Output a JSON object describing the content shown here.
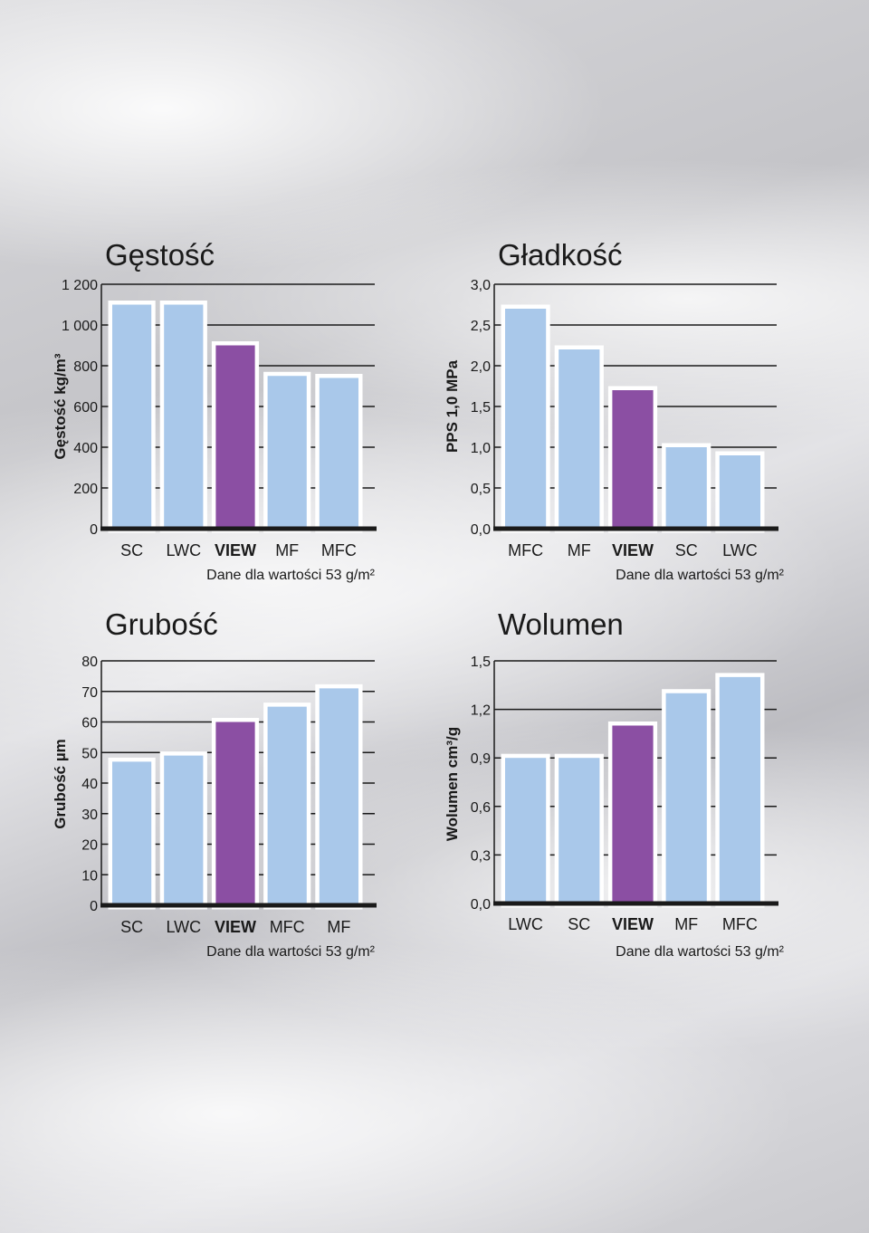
{
  "colors": {
    "bar": "#a9c8ea",
    "highlight": "#8b4fa3",
    "outline": "#ffffff",
    "axis": "#1a1a1a",
    "text": "#1a1a1a"
  },
  "chart_data": [
    {
      "type": "bar",
      "title": "Gęstość",
      "ylabel": "Gęstość kg/m³",
      "note": "Dane dla wartości 53 g/m²",
      "categories": [
        "SC",
        "LWC",
        "VIEW",
        "MF",
        "MFC"
      ],
      "values": [
        1100,
        1100,
        900,
        750,
        740
      ],
      "highlight": "VIEW",
      "ylim": [
        0,
        1200
      ],
      "yticks": [
        0,
        200,
        400,
        600,
        800,
        1000,
        1200
      ],
      "ytick_labels": [
        "0",
        "200",
        "400",
        "600",
        "800",
        "1 000",
        "1 200"
      ],
      "grid": true
    },
    {
      "type": "bar",
      "title": "Gładkość",
      "ylabel": "PPS 1,0 MPa",
      "note": "Dane dla wartości 53 g/m²",
      "categories": [
        "MFC",
        "MF",
        "VIEW",
        "SC",
        "LWC"
      ],
      "values": [
        2.7,
        2.2,
        1.7,
        1.0,
        0.9
      ],
      "highlight": "VIEW",
      "ylim": [
        0,
        3
      ],
      "yticks": [
        0,
        0.5,
        1,
        1.5,
        2,
        2.5,
        3
      ],
      "ytick_labels": [
        "0,0",
        "0,5",
        "1,0",
        "1,5",
        "2,0",
        "2,5",
        "3,0"
      ],
      "grid": true
    },
    {
      "type": "bar",
      "title": "Grubość",
      "ylabel": "Grubość µm",
      "note": "Dane dla wartości 53 g/m²",
      "categories": [
        "SC",
        "LWC",
        "VIEW",
        "MFC",
        "MF"
      ],
      "values": [
        47,
        49,
        60,
        65,
        71
      ],
      "highlight": "VIEW",
      "ylim": [
        0,
        80
      ],
      "yticks": [
        0,
        10,
        20,
        30,
        40,
        50,
        60,
        70,
        80
      ],
      "ytick_labels": [
        "0",
        "10",
        "20",
        "30",
        "40",
        "50",
        "60",
        "70",
        "80"
      ],
      "grid": true
    },
    {
      "type": "bar",
      "title": "Wolumen",
      "ylabel": "Wolumen cm³/g",
      "note": "Dane dla wartości 53 g/m²",
      "categories": [
        "LWC",
        "SC",
        "VIEW",
        "MF",
        "MFC"
      ],
      "values": [
        0.9,
        0.9,
        1.1,
        1.3,
        1.4
      ],
      "highlight": "VIEW",
      "ylim": [
        0,
        1.5
      ],
      "yticks": [
        0,
        0.3,
        0.6,
        0.9,
        1.2,
        1.5
      ],
      "ytick_labels": [
        "0,0",
        "0,3",
        "0,6",
        "0,9",
        "1,2",
        "1,5"
      ],
      "grid": true
    }
  ]
}
